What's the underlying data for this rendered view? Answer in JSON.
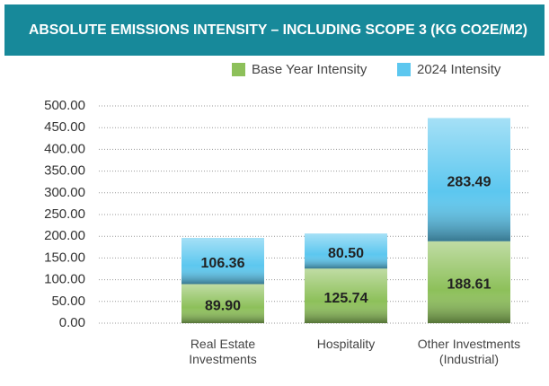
{
  "chart_data": {
    "type": "bar",
    "stacked": true,
    "title": "ABSOLUTE EMISSIONS INTENSITY – INCLUDING SCOPE 3 (KG CO2E/M2)",
    "categories": [
      "Real Estate Investments",
      "Hospitality",
      "Other Investments (Industrial)"
    ],
    "series": [
      {
        "name": "Base Year Intensity",
        "color": "#8dc05a",
        "values": [
          89.9,
          125.74,
          188.61
        ],
        "value_labels": [
          "89.90",
          "125.74",
          "188.61"
        ]
      },
      {
        "name": "2024 Intensity",
        "color": "#5cc7ef",
        "values": [
          106.36,
          80.5,
          283.49
        ],
        "value_labels": [
          "106.36",
          "80.50",
          "283.49"
        ]
      }
    ],
    "ylim": [
      0,
      500
    ],
    "yticks": [
      {
        "value": 0,
        "label": "0.00"
      },
      {
        "value": 50,
        "label": "50.00"
      },
      {
        "value": 100,
        "label": "100.00"
      },
      {
        "value": 150,
        "label": "150.00"
      },
      {
        "value": 200,
        "label": "200.00"
      },
      {
        "value": 250,
        "label": "250.00"
      },
      {
        "value": 300,
        "label": "300.00"
      },
      {
        "value": 350,
        "label": "350.00"
      },
      {
        "value": 400,
        "label": "400.00"
      },
      {
        "value": 450,
        "label": "450.00"
      },
      {
        "value": 500,
        "label": "500.00"
      }
    ],
    "grid": true,
    "legend": "top-right"
  }
}
